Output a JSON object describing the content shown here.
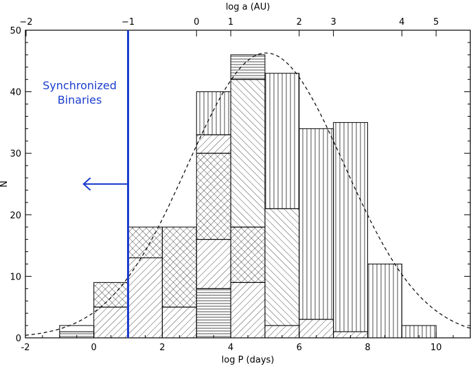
{
  "chart_data": {
    "type": "bar",
    "subtype": "stacked histogram",
    "xlabel": "log P (days)",
    "x2label": "log a (AU)",
    "ylabel": "N",
    "xlim": [
      -2,
      11
    ],
    "ylim": [
      0,
      50
    ],
    "xticks": [
      -2,
      0,
      2,
      4,
      6,
      8,
      10
    ],
    "yticks": [
      0,
      10,
      20,
      30,
      40,
      50
    ],
    "x2ticks": [
      {
        "label": "−2",
        "x": -1.98
      },
      {
        "label": "−1",
        "x": 1.0
      },
      {
        "label": "0",
        "x": 3.0
      },
      {
        "label": "1",
        "x": 4.0
      },
      {
        "label": "2",
        "x": 6.0
      },
      {
        "label": "3",
        "x": 7.0
      },
      {
        "label": "4",
        "x": 9.0
      },
      {
        "label": "5",
        "x": 10.0
      }
    ],
    "bins": [
      {
        "x0": -1,
        "x1": 0,
        "segments": [
          {
            "y0": 0,
            "y1": 1,
            "pattern": "horiz"
          },
          {
            "y0": 1,
            "y1": 2,
            "pattern": "none"
          }
        ]
      },
      {
        "x0": 0,
        "x1": 1,
        "segments": [
          {
            "y0": 0,
            "y1": 5,
            "pattern": "diag"
          },
          {
            "y0": 5,
            "y1": 9,
            "pattern": "cross"
          }
        ]
      },
      {
        "x0": 1,
        "x1": 2,
        "segments": [
          {
            "y0": 0,
            "y1": 13,
            "pattern": "diag"
          },
          {
            "y0": 13,
            "y1": 18,
            "pattern": "cross"
          }
        ]
      },
      {
        "x0": 2,
        "x1": 3,
        "segments": [
          {
            "y0": 0,
            "y1": 5,
            "pattern": "diag"
          },
          {
            "y0": 5,
            "y1": 18,
            "pattern": "cross"
          }
        ]
      },
      {
        "x0": 3,
        "x1": 4,
        "segments": [
          {
            "y0": 0,
            "y1": 8,
            "pattern": "horiz"
          },
          {
            "y0": 8,
            "y1": 16,
            "pattern": "diag"
          },
          {
            "y0": 16,
            "y1": 30,
            "pattern": "cross"
          },
          {
            "y0": 30,
            "y1": 33,
            "pattern": "diag"
          },
          {
            "y0": 33,
            "y1": 40,
            "pattern": "vert"
          }
        ]
      },
      {
        "x0": 4,
        "x1": 5,
        "segments": [
          {
            "y0": 0,
            "y1": 9,
            "pattern": "diag"
          },
          {
            "y0": 9,
            "y1": 18,
            "pattern": "cross"
          },
          {
            "y0": 18,
            "y1": 42,
            "pattern": "back"
          },
          {
            "y0": 42,
            "y1": 46,
            "pattern": "horiz"
          }
        ]
      },
      {
        "x0": 5,
        "x1": 6,
        "segments": [
          {
            "y0": 0,
            "y1": 2,
            "pattern": "diag"
          },
          {
            "y0": 2,
            "y1": 21,
            "pattern": "back"
          },
          {
            "y0": 21,
            "y1": 43,
            "pattern": "vert"
          }
        ]
      },
      {
        "x0": 6,
        "x1": 7,
        "segments": [
          {
            "y0": 0,
            "y1": 3,
            "pattern": "diag"
          },
          {
            "y0": 3,
            "y1": 34,
            "pattern": "vert"
          }
        ]
      },
      {
        "x0": 7,
        "x1": 8,
        "segments": [
          {
            "y0": 0,
            "y1": 1,
            "pattern": "diag"
          },
          {
            "y0": 1,
            "y1": 35,
            "pattern": "vert"
          }
        ]
      },
      {
        "x0": 8,
        "x1": 9,
        "segments": [
          {
            "y0": 0,
            "y1": 12,
            "pattern": "vert"
          }
        ]
      },
      {
        "x0": 9,
        "x1": 10,
        "segments": [
          {
            "y0": 0,
            "y1": 2,
            "pattern": "vert"
          }
        ]
      }
    ],
    "fit_curve": {
      "type": "gaussian",
      "amplitude": 46.3,
      "mean": 5.03,
      "sigma": 2.29,
      "style": "dashed"
    },
    "annotation": {
      "text_lines": [
        "Synchronized",
        "Binaries"
      ],
      "x_at": 1.0,
      "arrow_y": 25,
      "arrow_to_x": -0.3,
      "color": "#1a3ccc"
    }
  }
}
